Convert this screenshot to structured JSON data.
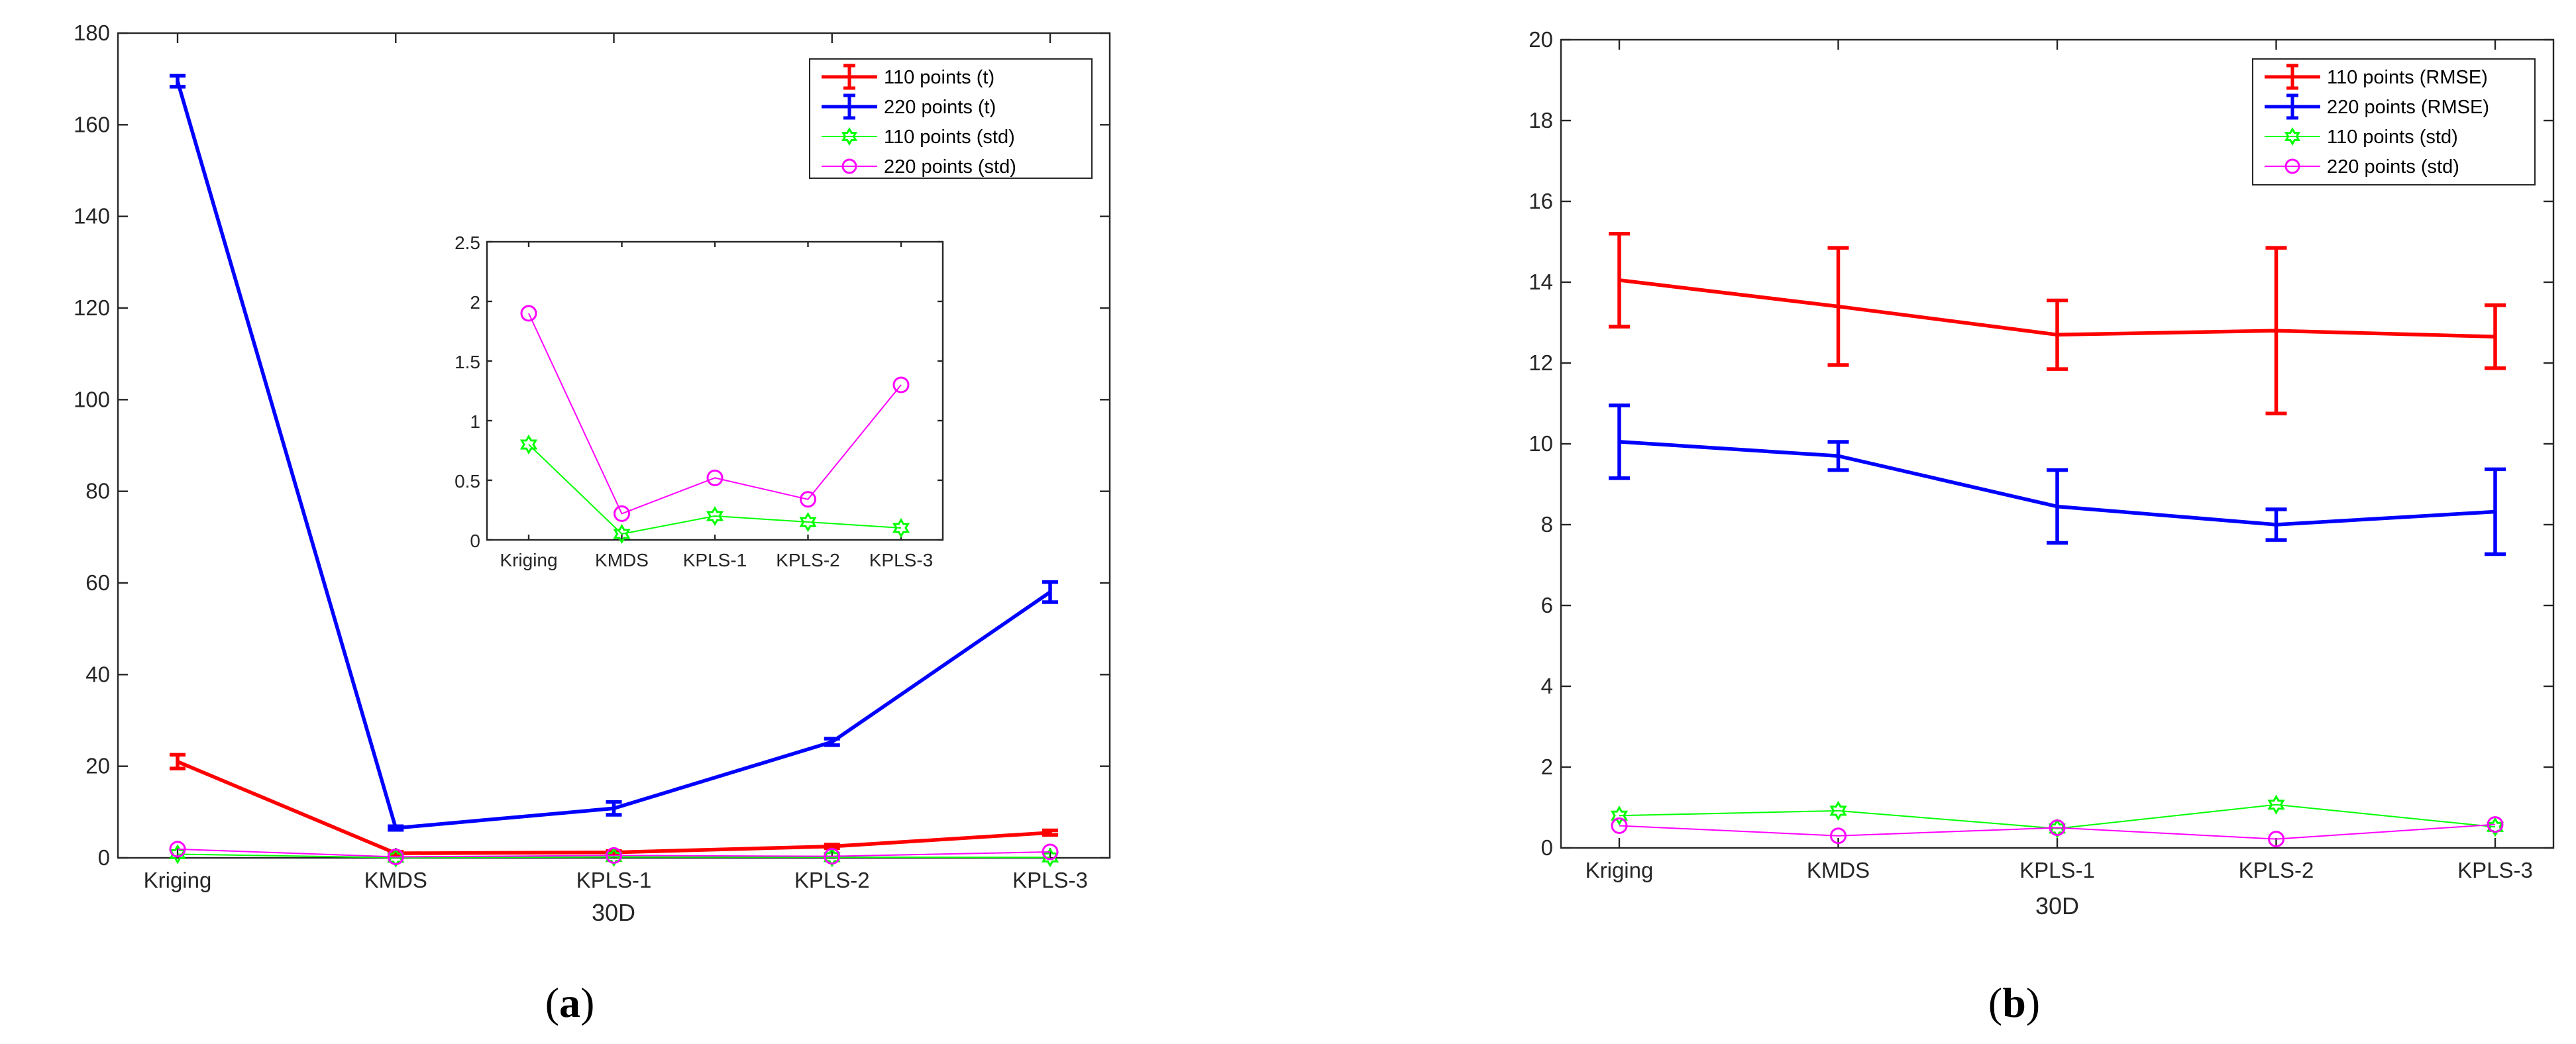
{
  "chart_data": [
    {
      "id": "a",
      "type": "line",
      "panel_label": "a",
      "xlabel": "30D",
      "ylabel": "",
      "categories": [
        "Kriging",
        "KMDS",
        "KPLS-1",
        "KPLS-2",
        "KPLS-3"
      ],
      "ylim": [
        0,
        180
      ],
      "yticks": [
        0,
        20,
        40,
        60,
        80,
        100,
        120,
        140,
        160,
        180
      ],
      "series": [
        {
          "name": "110 points (t)",
          "color": "#ff0000",
          "marker": "none",
          "errorbars": true,
          "values": [
            21,
            1,
            1.2,
            2.5,
            5.5
          ],
          "errors": [
            1.5,
            0.3,
            0.3,
            0.4,
            0.5
          ]
        },
        {
          "name": "220 points (t)",
          "color": "#0000ff",
          "marker": "none",
          "errorbars": true,
          "values": [
            169.5,
            6.5,
            10.8,
            25.3,
            58
          ],
          "errors": [
            1.2,
            0.4,
            1.4,
            0.7,
            2.2
          ]
        },
        {
          "name": "110 points (std)",
          "color": "#00ff00",
          "marker": "hexagram",
          "errorbars": false,
          "values": [
            0.8,
            0.05,
            0.2,
            0.15,
            0.1
          ]
        },
        {
          "name": "220 points (std)",
          "color": "#ff00ff",
          "marker": "circle",
          "errorbars": false,
          "values": [
            1.9,
            0.22,
            0.52,
            0.34,
            1.3
          ]
        }
      ],
      "inset": {
        "categories": [
          "Kriging",
          "KMDS",
          "KPLS-1",
          "KPLS-2",
          "KPLS-3"
        ],
        "ylim": [
          0,
          2.5
        ],
        "yticks": [
          0,
          0.5,
          1,
          1.5,
          2,
          2.5
        ],
        "ytick_labels": [
          "0",
          "0.5",
          "1",
          "1.5",
          "2",
          "2.5"
        ],
        "series": [
          {
            "name": "110 points (std)",
            "color": "#00ff00",
            "marker": "hexagram",
            "values": [
              0.8,
              0.05,
              0.2,
              0.15,
              0.1
            ]
          },
          {
            "name": "220 points (std)",
            "color": "#ff00ff",
            "marker": "circle",
            "values": [
              1.9,
              0.22,
              0.52,
              0.34,
              1.3
            ]
          }
        ]
      },
      "legend_location": "top-right"
    },
    {
      "id": "b",
      "type": "line",
      "panel_label": "b",
      "xlabel": "30D",
      "ylabel": "",
      "categories": [
        "Kriging",
        "KMDS",
        "KPLS-1",
        "KPLS-2",
        "KPLS-3"
      ],
      "ylim": [
        0,
        20
      ],
      "yticks": [
        0,
        2,
        4,
        6,
        8,
        10,
        12,
        14,
        16,
        18,
        20
      ],
      "series": [
        {
          "name": "110 points (RMSE)",
          "color": "#ff0000",
          "marker": "none",
          "errorbars": true,
          "values": [
            14.05,
            13.4,
            12.7,
            12.8,
            12.65
          ],
          "errors": [
            1.15,
            1.45,
            0.85,
            2.05,
            0.78
          ]
        },
        {
          "name": "220 points (RMSE)",
          "color": "#0000ff",
          "marker": "none",
          "errorbars": true,
          "values": [
            10.05,
            9.7,
            8.45,
            8.0,
            8.32
          ],
          "errors": [
            0.9,
            0.35,
            0.9,
            0.38,
            1.05
          ]
        },
        {
          "name": "110 points (std)",
          "color": "#00ff00",
          "marker": "hexagram",
          "errorbars": false,
          "values": [
            0.8,
            0.92,
            0.48,
            1.07,
            0.52
          ]
        },
        {
          "name": "220 points (std)",
          "color": "#ff00ff",
          "marker": "circle",
          "errorbars": false,
          "values": [
            0.55,
            0.3,
            0.5,
            0.22,
            0.58
          ]
        }
      ],
      "legend_location": "top-right"
    }
  ]
}
